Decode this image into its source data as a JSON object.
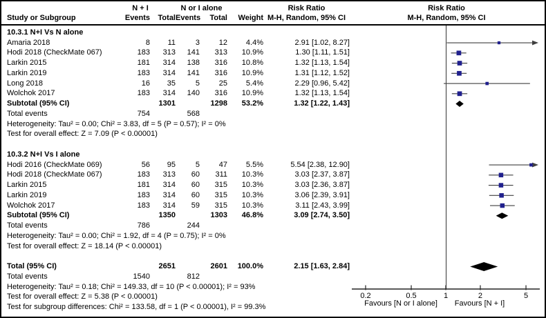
{
  "header": {
    "group1_label": "N + I",
    "group2_label": "N or I alone",
    "risk_ratio_label": "Risk Ratio",
    "method_label": "M-H, Random, 95% CI",
    "study_col": "Study or Subgroup",
    "events_col": "Events",
    "total_col": "Total",
    "weight_col": "Weight"
  },
  "subgroups": [
    {
      "title": "10.3.1 N+I Vs N alone",
      "studies": [
        {
          "name": "Amaria 2018",
          "e1": "8",
          "t1": "11",
          "e2": "3",
          "t2": "12",
          "weight": "4.4%",
          "ci": "2.91 [1.02, 8.27]"
        },
        {
          "name": "Hodi 2018 (CheckMate 067)",
          "e1": "183",
          "t1": "313",
          "e2": "141",
          "t2": "313",
          "weight": "10.9%",
          "ci": "1.30 [1.11, 1.51]"
        },
        {
          "name": "Larkin 2015",
          "e1": "181",
          "t1": "314",
          "e2": "138",
          "t2": "316",
          "weight": "10.8%",
          "ci": "1.32 [1.13, 1.54]"
        },
        {
          "name": "Larkin 2019",
          "e1": "183",
          "t1": "314",
          "e2": "141",
          "t2": "316",
          "weight": "10.9%",
          "ci": "1.31 [1.12, 1.52]"
        },
        {
          "name": "Long 2018",
          "e1": "16",
          "t1": "35",
          "e2": "5",
          "t2": "25",
          "weight": "5.4%",
          "ci": "2.29 [0.96, 5.42]"
        },
        {
          "name": "Wolchok 2017",
          "e1": "183",
          "t1": "314",
          "e2": "140",
          "t2": "316",
          "weight": "10.9%",
          "ci": "1.32 [1.13, 1.54]"
        }
      ],
      "subtotal": {
        "label": "Subtotal (95% CI)",
        "t1": "1301",
        "t2": "1298",
        "weight": "53.2%",
        "ci": "1.32 [1.22, 1.43]"
      },
      "total_events_label": "Total events",
      "total_events_1": "754",
      "total_events_2": "568",
      "heterogeneity": "Heterogeneity: Tau² = 0.00; Chi² = 3.83, df = 5 (P = 0.57); I² = 0%",
      "overall_effect": "Test for overall effect: Z = 7.09 (P < 0.00001)"
    },
    {
      "title": "10.3.2 N+I Vs I alone",
      "studies": [
        {
          "name": "Hodi 2016 (CheckMate 069)",
          "e1": "56",
          "t1": "95",
          "e2": "5",
          "t2": "47",
          "weight": "5.5%",
          "ci": "5.54 [2.38, 12.90]"
        },
        {
          "name": "Hodi 2018 (CheckMate 067)",
          "e1": "183",
          "t1": "313",
          "e2": "60",
          "t2": "311",
          "weight": "10.3%",
          "ci": "3.03 [2.37, 3.87]"
        },
        {
          "name": "Larkin 2015",
          "e1": "181",
          "t1": "314",
          "e2": "60",
          "t2": "315",
          "weight": "10.3%",
          "ci": "3.03 [2.36, 3.87]"
        },
        {
          "name": "Larkin 2019",
          "e1": "183",
          "t1": "314",
          "e2": "60",
          "t2": "315",
          "weight": "10.3%",
          "ci": "3.06 [2.39, 3.91]"
        },
        {
          "name": "Wolchok 2017",
          "e1": "183",
          "t1": "314",
          "e2": "59",
          "t2": "315",
          "weight": "10.3%",
          "ci": "3.11 [2.43, 3.99]"
        }
      ],
      "subtotal": {
        "label": "Subtotal (95% CI)",
        "t1": "1350",
        "t2": "1303",
        "weight": "46.8%",
        "ci": "3.09 [2.74, 3.50]"
      },
      "total_events_label": "Total events",
      "total_events_1": "786",
      "total_events_2": "244",
      "heterogeneity": "Heterogeneity: Tau² = 0.00; Chi² = 1.92, df = 4 (P = 0.75); I² = 0%",
      "overall_effect": "Test for overall effect: Z = 18.14 (P < 0.00001)"
    }
  ],
  "total": {
    "label": "Total (95% CI)",
    "t1": "2651",
    "t2": "2601",
    "weight": "100.0%",
    "ci": "2.15 [1.63, 2.84]",
    "total_events_label": "Total events",
    "total_events_1": "1540",
    "total_events_2": "812",
    "heterogeneity": "Heterogeneity: Tau² = 0.18; Chi² = 149.33, df = 10 (P < 0.00001); I² = 93%",
    "overall_effect": "Test for overall effect: Z = 5.38 (P < 0.00001)",
    "subgroup_diff": "Test for subgroup differences: Chi² = 133.58, df = 1 (P < 0.00001), I² = 99.3%"
  },
  "axis": {
    "tick_labels": [
      "0.2",
      "0.5",
      "1",
      "2",
      "5"
    ],
    "favours_left": "Favours [N or I alone]",
    "favours_right": "Favours [N + I]"
  },
  "colors": {
    "marker": "#20208d",
    "ci_line": "#3f3f3f",
    "diamond": "#000000",
    "axis": "#222222",
    "null_line": "#333333"
  },
  "chart_data": {
    "type": "scatter",
    "variant": "forest-plot-meta-analysis",
    "effect_measure": "Risk Ratio, M-H, Random, 95% CI",
    "x_scale": "log",
    "x_ticks": [
      0.2,
      0.5,
      1,
      2,
      5
    ],
    "null_value": 1,
    "axis_labels": {
      "left": "Favours [N or I alone]",
      "right": "Favours [N + I]"
    },
    "subgroups": [
      {
        "name": "10.3.1 N+I Vs N alone",
        "studies": [
          {
            "study": "Amaria 2018",
            "rr": 2.91,
            "ci_low": 1.02,
            "ci_high": 8.27,
            "weight_pct": 4.4
          },
          {
            "study": "Hodi 2018 (CheckMate 067)",
            "rr": 1.3,
            "ci_low": 1.11,
            "ci_high": 1.51,
            "weight_pct": 10.9
          },
          {
            "study": "Larkin 2015",
            "rr": 1.32,
            "ci_low": 1.13,
            "ci_high": 1.54,
            "weight_pct": 10.8
          },
          {
            "study": "Larkin 2019",
            "rr": 1.31,
            "ci_low": 1.12,
            "ci_high": 1.52,
            "weight_pct": 10.9
          },
          {
            "study": "Long 2018",
            "rr": 2.29,
            "ci_low": 0.96,
            "ci_high": 5.42,
            "weight_pct": 5.4
          },
          {
            "study": "Wolchok 2017",
            "rr": 1.32,
            "ci_low": 1.13,
            "ci_high": 1.54,
            "weight_pct": 10.9
          }
        ],
        "subtotal": {
          "rr": 1.32,
          "ci_low": 1.22,
          "ci_high": 1.43,
          "weight_pct": 53.2
        }
      },
      {
        "name": "10.3.2 N+I Vs I alone",
        "studies": [
          {
            "study": "Hodi 2016 (CheckMate 069)",
            "rr": 5.54,
            "ci_low": 2.38,
            "ci_high": 12.9,
            "weight_pct": 5.5
          },
          {
            "study": "Hodi 2018 (CheckMate 067)",
            "rr": 3.03,
            "ci_low": 2.37,
            "ci_high": 3.87,
            "weight_pct": 10.3
          },
          {
            "study": "Larkin 2015",
            "rr": 3.03,
            "ci_low": 2.36,
            "ci_high": 3.87,
            "weight_pct": 10.3
          },
          {
            "study": "Larkin 2019",
            "rr": 3.06,
            "ci_low": 2.39,
            "ci_high": 3.91,
            "weight_pct": 10.3
          },
          {
            "study": "Wolchok 2017",
            "rr": 3.11,
            "ci_low": 2.43,
            "ci_high": 3.99,
            "weight_pct": 10.3
          }
        ],
        "subtotal": {
          "rr": 3.09,
          "ci_low": 2.74,
          "ci_high": 3.5,
          "weight_pct": 46.8
        }
      }
    ],
    "overall": {
      "rr": 2.15,
      "ci_low": 1.63,
      "ci_high": 2.84,
      "weight_pct": 100.0
    }
  }
}
